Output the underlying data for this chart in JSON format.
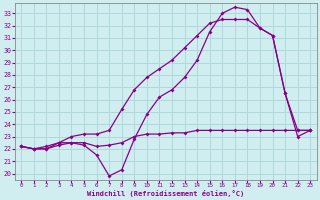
{
  "xlabel": "Windchill (Refroidissement éolien,°C)",
  "background_color": "#d0eef0",
  "grid_color": "#b0d8dc",
  "line_color": "#880088",
  "x_ticks": [
    0,
    1,
    2,
    3,
    4,
    5,
    6,
    7,
    8,
    9,
    10,
    11,
    12,
    13,
    14,
    15,
    16,
    17,
    18,
    19,
    20,
    21,
    22,
    23
  ],
  "y_ticks": [
    20,
    21,
    22,
    23,
    24,
    25,
    26,
    27,
    28,
    29,
    30,
    31,
    32,
    33
  ],
  "ylim": [
    19.5,
    33.8
  ],
  "xlim": [
    -0.5,
    23.5
  ],
  "line1_x": [
    0,
    1,
    2,
    3,
    4,
    5,
    6,
    7,
    8,
    9,
    10,
    11,
    12,
    13,
    14,
    15,
    16,
    17,
    18,
    19,
    20,
    21,
    22,
    23
  ],
  "line1_y": [
    22.2,
    22.0,
    22.0,
    22.3,
    22.5,
    22.5,
    22.2,
    22.3,
    22.5,
    23.0,
    23.2,
    23.2,
    23.3,
    23.3,
    23.5,
    23.5,
    23.5,
    23.5,
    23.5,
    23.5,
    23.5,
    23.5,
    23.5,
    23.5
  ],
  "line2_x": [
    0,
    1,
    2,
    3,
    4,
    5,
    6,
    7,
    8,
    9,
    10,
    11,
    12,
    13,
    14,
    15,
    16,
    17,
    18,
    19,
    20,
    21,
    22,
    23
  ],
  "line2_y": [
    22.2,
    22.0,
    22.2,
    22.5,
    22.5,
    22.3,
    21.5,
    19.8,
    20.3,
    22.8,
    24.8,
    26.2,
    26.8,
    27.8,
    29.2,
    31.5,
    33.0,
    33.5,
    33.3,
    31.8,
    31.2,
    26.5,
    23.0,
    23.5
  ],
  "line3_x": [
    0,
    1,
    2,
    3,
    4,
    5,
    6,
    7,
    8,
    9,
    10,
    11,
    12,
    13,
    14,
    15,
    16,
    17,
    18,
    19,
    20,
    21,
    22,
    23
  ],
  "line3_y": [
    22.2,
    22.0,
    22.0,
    22.5,
    23.0,
    23.2,
    23.2,
    23.5,
    25.2,
    26.8,
    27.8,
    28.5,
    29.2,
    30.2,
    31.2,
    32.2,
    32.5,
    32.5,
    32.5,
    31.8,
    31.2,
    26.5,
    23.5,
    23.5
  ]
}
